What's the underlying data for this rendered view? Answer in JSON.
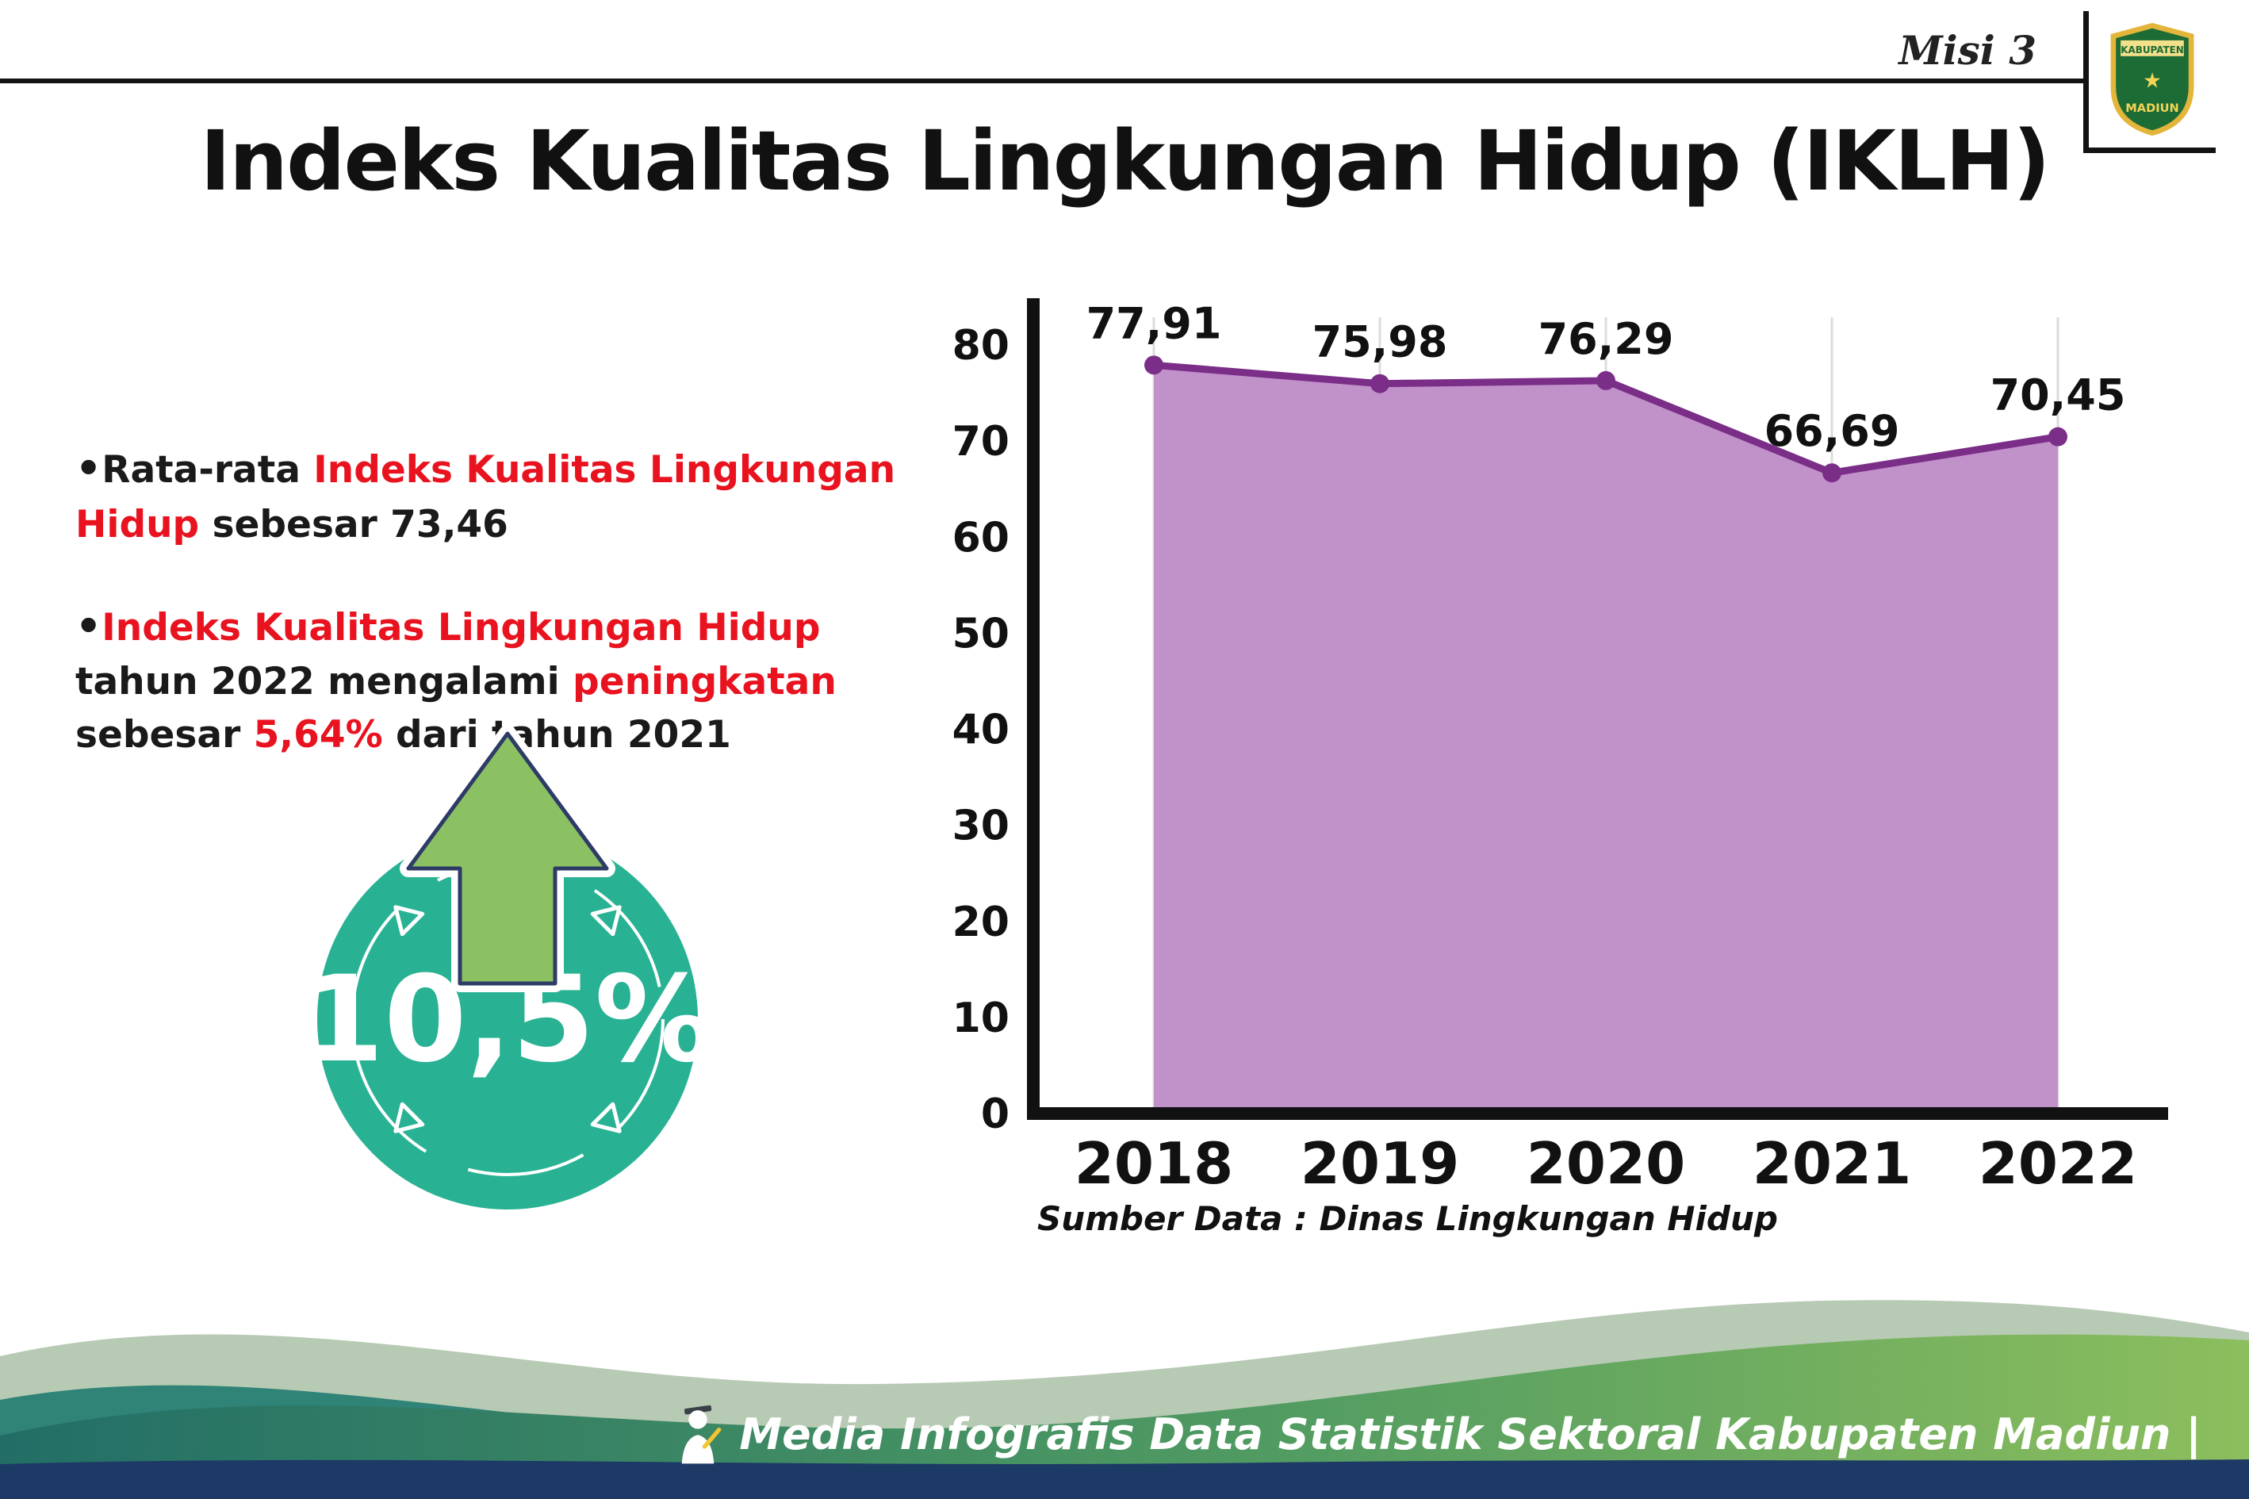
{
  "header": {
    "misi": "Misi 3",
    "title": "Indeks Kualitas Lingkungan Hidup (IKLH)"
  },
  "logo": {
    "line1": "KABUPATEN",
    "line2": "MADIUN",
    "star_glyph": "★"
  },
  "bullets": [
    {
      "dot": "•",
      "segments": [
        {
          "text": "Rata-rata ",
          "color": "black"
        },
        {
          "text": "Indeks Kualitas Lingkungan Hidup",
          "color": "red"
        },
        {
          "text": " sebesar 73,46",
          "color": "black"
        }
      ]
    },
    {
      "dot": "•",
      "segments": [
        {
          "text": "Indeks Kualitas Lingkungan Hidup",
          "color": "red"
        },
        {
          "text": " tahun 2022 mengalami ",
          "color": "black"
        },
        {
          "text": "peningkatan",
          "color": "red"
        },
        {
          "text": " sebesar ",
          "color": "black"
        },
        {
          "text": "5,64%",
          "color": "red"
        },
        {
          "text": " dari tahun 2021",
          "color": "black"
        }
      ]
    }
  ],
  "badge": {
    "value": "10,5%",
    "circle_color": "#28b293",
    "arrow_color": "#8bc162",
    "arrow_outline": "#2d3b66"
  },
  "chart_data": {
    "type": "area",
    "title": "Indeks Kualitas Lingkungan Hidup (IKLH)",
    "categories": [
      "2018",
      "2019",
      "2020",
      "2021",
      "2022"
    ],
    "values": [
      77.91,
      75.98,
      76.29,
      66.69,
      70.45
    ],
    "value_labels": [
      "77,91",
      "75,98",
      "76,29",
      "66,69",
      "70,45"
    ],
    "ylim": [
      0,
      80
    ],
    "yticks": [
      0,
      10,
      20,
      30,
      40,
      50,
      60,
      70,
      80
    ],
    "grid": "faint vertical per category",
    "legend": "none",
    "line_color": "#7a2e87",
    "fill_color": "#c191ca",
    "source": "Sumber Data : Dinas Lingkungan Hidup"
  },
  "footer": {
    "text": "Media Infografis Data Statistik Sektoral Kabupaten Madiun |",
    "navy": "#1d3a66",
    "green": "#8cbe5d",
    "teal": "#226e66"
  }
}
